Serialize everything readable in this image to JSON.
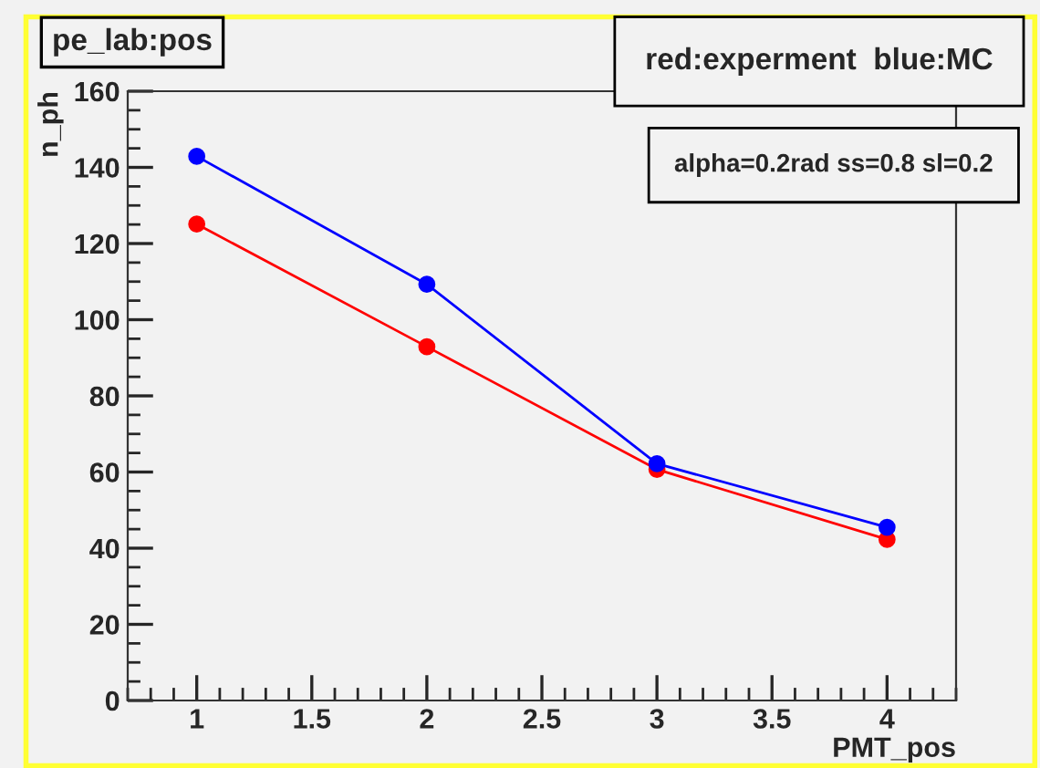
{
  "chart_data": {
    "type": "line",
    "title": "pe_lab:pos",
    "xlabel": "PMT_pos",
    "ylabel": "n_ph",
    "annotations": [
      "red:experment  blue:MC",
      "alpha=0.2rad ss=0.8 sl=0.2"
    ],
    "x": [
      1,
      2,
      3,
      4
    ],
    "series": [
      {
        "color": "#ff0000",
        "values": [
          125.1,
          92.9,
          60.7,
          42.3
        ]
      },
      {
        "color": "#0000ff",
        "values": [
          142.9,
          109.3,
          62.2,
          45.5
        ]
      }
    ],
    "xlim": [
      0.7,
      4.3
    ],
    "xticks": [
      1,
      1.5,
      2,
      2.5,
      3,
      3.5,
      4
    ],
    "ylim": [
      0,
      160
    ],
    "yticks": [
      0,
      20,
      40,
      60,
      80,
      100,
      120,
      140,
      160
    ],
    "marker": "circle",
    "line_style": "solid",
    "grid": false
  }
}
